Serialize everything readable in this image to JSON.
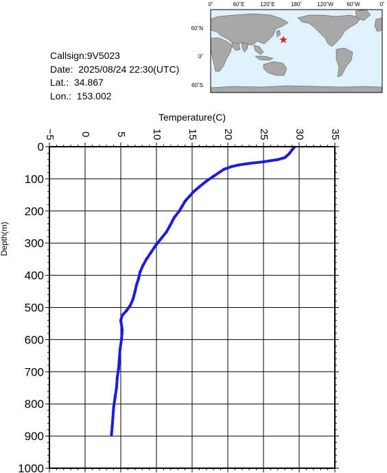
{
  "info": {
    "callsign": "Callsign:9V5023",
    "date": "Date:  2025/08/24 22:30(UTC)",
    "lat": "Lat.:  34.867",
    "lon": "Lon.:  153.002"
  },
  "map": {
    "top_labels": [
      "0˚",
      "60˚E",
      "120˚E",
      "180˚",
      "120˚W",
      "60˚W",
      "0˚"
    ],
    "lat_labels": [
      "60˚N",
      "0˚",
      "60˚S"
    ],
    "colors": {
      "ocean": "#dff2fb",
      "land": "#a8a8a8",
      "marker": "#e8141e"
    }
  },
  "chart_data": {
    "type": "line",
    "title": "",
    "xlabel": "Temperature(C)",
    "ylabel": "Depth(m)",
    "xlim": [
      -5,
      35
    ],
    "ylim": [
      1000,
      0
    ],
    "x_ticks": [
      "−5",
      "0",
      "5",
      "10",
      "15",
      "20",
      "25",
      "30",
      "35"
    ],
    "y_ticks": [
      "0",
      "100",
      "200",
      "300",
      "400",
      "500",
      "600",
      "700",
      "800",
      "900",
      "1000"
    ],
    "grid": true,
    "series": [
      {
        "color": "#1a1aeb",
        "points": [
          [
            29.3,
            2
          ],
          [
            29.0,
            10
          ],
          [
            28.6,
            22
          ],
          [
            28.0,
            34
          ],
          [
            27.0,
            40
          ],
          [
            25.0,
            47
          ],
          [
            23.0,
            52
          ],
          [
            21.5,
            57
          ],
          [
            20.5,
            62
          ],
          [
            19.5,
            70
          ],
          [
            18.8,
            80
          ],
          [
            18.0,
            92
          ],
          [
            17.0,
            107
          ],
          [
            16.0,
            125
          ],
          [
            15.2,
            140
          ],
          [
            14.6,
            155
          ],
          [
            14.0,
            170
          ],
          [
            13.6,
            185
          ],
          [
            13.2,
            200
          ],
          [
            12.5,
            220
          ],
          [
            11.9,
            245
          ],
          [
            11.4,
            265
          ],
          [
            10.5,
            290
          ],
          [
            9.8,
            310
          ],
          [
            9.2,
            330
          ],
          [
            8.6,
            350
          ],
          [
            8.1,
            370
          ],
          [
            7.7,
            390
          ],
          [
            7.5,
            410
          ],
          [
            7.2,
            430
          ],
          [
            7.0,
            450
          ],
          [
            6.7,
            475
          ],
          [
            6.3,
            495
          ],
          [
            5.8,
            510
          ],
          [
            5.2,
            525
          ],
          [
            5.0,
            540
          ],
          [
            5.2,
            570
          ],
          [
            5.1,
            600
          ],
          [
            4.9,
            630
          ],
          [
            4.8,
            660
          ],
          [
            4.7,
            690
          ],
          [
            4.5,
            720
          ],
          [
            4.4,
            750
          ],
          [
            4.2,
            780
          ],
          [
            4.0,
            810
          ],
          [
            3.9,
            840
          ],
          [
            3.8,
            870
          ],
          [
            3.7,
            895
          ]
        ]
      }
    ]
  }
}
